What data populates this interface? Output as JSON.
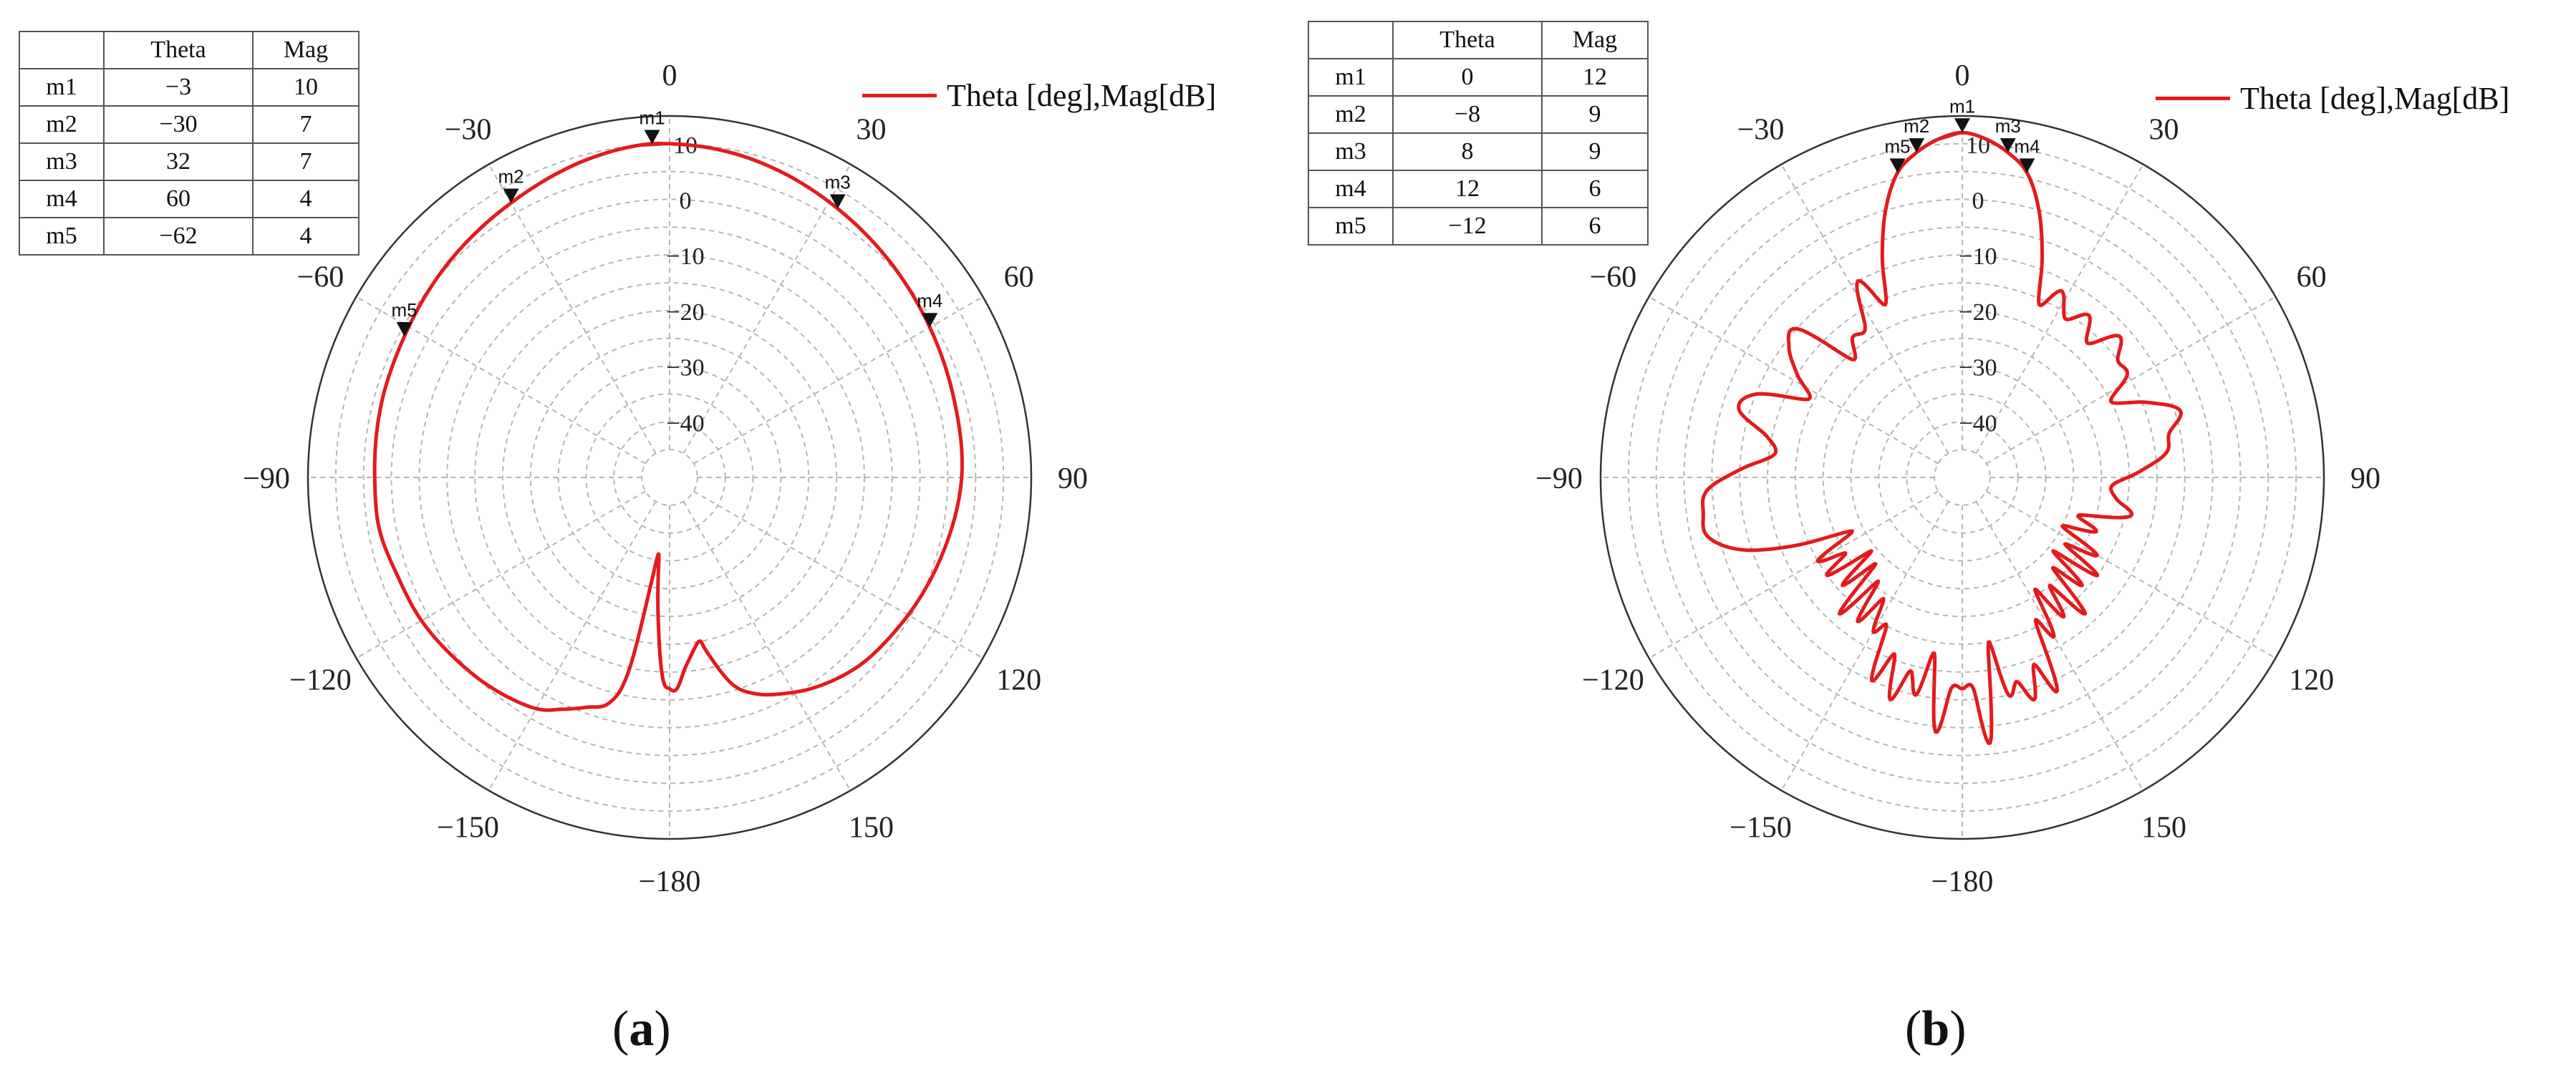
{
  "chart_data": [
    {
      "id": "a",
      "type": "polar-line",
      "caption_letter": "a",
      "legend": "Theta [deg],Mag[dB]",
      "series_color": "#e41a1c",
      "radial_range": [
        -50,
        15
      ],
      "radial_ticks": [
        "10",
        "0",
        "−10",
        "−20",
        "−30",
        "−40"
      ],
      "radial_tick_values": [
        10,
        0,
        -10,
        -20,
        -30,
        -40
      ],
      "angle_labels": [
        {
          "angle": 0,
          "label": "0"
        },
        {
          "angle": 30,
          "label": "30"
        },
        {
          "angle": 60,
          "label": "60"
        },
        {
          "angle": 90,
          "label": "90"
        },
        {
          "angle": 120,
          "label": "120"
        },
        {
          "angle": 150,
          "label": "150"
        },
        {
          "angle": 180,
          "label": "−180"
        },
        {
          "angle": -150,
          "label": "−150"
        },
        {
          "angle": -120,
          "label": "−120"
        },
        {
          "angle": -90,
          "label": "−90"
        },
        {
          "angle": -60,
          "label": "−60"
        },
        {
          "angle": -30,
          "label": "−30"
        }
      ],
      "marker_table": {
        "headers": [
          "",
          "Theta",
          "Mag"
        ],
        "rows": [
          [
            "m1",
            "−3",
            "10"
          ],
          [
            "m2",
            "−30",
            "7"
          ],
          [
            "m3",
            "32",
            "7"
          ],
          [
            "m4",
            "60",
            "4"
          ],
          [
            "m5",
            "−62",
            "4"
          ]
        ]
      },
      "markers": [
        {
          "name": "m1",
          "theta": -3,
          "mag": 10
        },
        {
          "name": "m2",
          "theta": -30,
          "mag": 7
        },
        {
          "name": "m3",
          "theta": 32,
          "mag": 7
        },
        {
          "name": "m4",
          "theta": 60,
          "mag": 4
        },
        {
          "name": "m5",
          "theta": -62,
          "mag": 4
        }
      ],
      "pattern": {
        "theta": [
          0,
          10,
          20,
          32,
          45,
          60,
          75,
          90,
          105,
          115,
          125,
          135,
          145,
          152,
          158,
          163,
          168,
          170,
          175,
          178,
          180,
          -178,
          -175,
          -172,
          -170,
          -168,
          -165,
          -160,
          -155,
          -150,
          -140,
          -130,
          -120,
          -110,
          -100,
          -90,
          -75,
          -62,
          -45,
          -30,
          -15,
          -5
        ],
        "mag": [
          10,
          9.5,
          8.5,
          7,
          5.5,
          4,
          3,
          2.5,
          1,
          0,
          -1,
          -2,
          -4,
          -6,
          -8,
          -11,
          -18,
          -20,
          -16,
          -12,
          -12,
          -14,
          -26,
          -36,
          -30,
          -14,
          -8,
          -6,
          -4,
          -2,
          -0.5,
          0.5,
          1.5,
          2,
          3,
          3,
          3.5,
          4,
          5.5,
          7,
          9,
          10
        ]
      }
    },
    {
      "id": "b",
      "type": "polar-line",
      "caption_letter": "b",
      "legend": "Theta [deg],Mag[dB]",
      "series_color": "#e41a1c",
      "radial_range": [
        -50,
        15
      ],
      "radial_ticks": [
        "10",
        "0",
        "−10",
        "−20",
        "−30",
        "−40"
      ],
      "radial_tick_values": [
        10,
        0,
        -10,
        -20,
        -30,
        -40
      ],
      "angle_labels": [
        {
          "angle": 0,
          "label": "0"
        },
        {
          "angle": 30,
          "label": "30"
        },
        {
          "angle": 60,
          "label": "60"
        },
        {
          "angle": 90,
          "label": "90"
        },
        {
          "angle": 120,
          "label": "120"
        },
        {
          "angle": 150,
          "label": "150"
        },
        {
          "angle": 180,
          "label": "−180"
        },
        {
          "angle": -150,
          "label": "−150"
        },
        {
          "angle": -120,
          "label": "−120"
        },
        {
          "angle": -90,
          "label": "−90"
        },
        {
          "angle": -60,
          "label": "−60"
        },
        {
          "angle": -30,
          "label": "−30"
        }
      ],
      "marker_table": {
        "headers": [
          "",
          "Theta",
          "Mag"
        ],
        "rows": [
          [
            "m1",
            "0",
            "12"
          ],
          [
            "m2",
            "−8",
            "9"
          ],
          [
            "m3",
            "8",
            "9"
          ],
          [
            "m4",
            "12",
            "6"
          ],
          [
            "m5",
            "−12",
            "6"
          ]
        ]
      },
      "markers": [
        {
          "name": "m1",
          "theta": 0,
          "mag": 12
        },
        {
          "name": "m2",
          "theta": -8,
          "mag": 9
        },
        {
          "name": "m3",
          "theta": 8,
          "mag": 9
        },
        {
          "name": "m4",
          "theta": 12,
          "mag": 6
        },
        {
          "name": "m5",
          "theta": -12,
          "mag": 6
        }
      ],
      "pattern": {
        "theta": [
          0,
          4,
          8,
          12,
          16,
          20,
          24,
          28,
          33,
          38,
          43,
          48,
          53,
          58,
          63,
          68,
          73,
          78,
          83,
          88,
          93,
          98,
          103,
          108,
          112,
          116,
          120,
          123,
          126,
          129,
          132,
          135,
          138,
          141,
          144,
          147,
          150,
          153,
          156,
          159,
          162,
          165,
          168,
          171,
          174,
          177,
          180,
          -177,
          -174,
          -171,
          -168,
          -165,
          -162,
          -159,
          -156,
          -153,
          -150,
          -147,
          -144,
          -141,
          -138,
          -135,
          -132,
          -129,
          -126,
          -123,
          -120,
          -116,
          -112,
          -108,
          -103,
          -98,
          -93,
          -88,
          -83,
          -78,
          -73,
          -68,
          -63,
          -58,
          -53,
          -48,
          -43,
          -38,
          -33,
          -28,
          -24,
          -20,
          -16,
          -12,
          -8,
          -4
        ],
        "mag": [
          12,
          11,
          9,
          6,
          0,
          -8,
          -16,
          -12,
          -16,
          -13,
          -17,
          -12,
          -15,
          -15,
          -20,
          -14,
          -9,
          -12,
          -13,
          -18,
          -23,
          -22,
          -19,
          -28,
          -24,
          -30,
          -22,
          -28,
          -20,
          -29,
          -21,
          -27,
          -17,
          -25,
          -19,
          -26,
          -17,
          -21,
          -8,
          -14,
          -8,
          -12,
          -10,
          -20,
          -2,
          -12,
          -12,
          -12,
          -4,
          -18,
          -10,
          -14,
          -8,
          -16,
          -10,
          -20,
          -18,
          -24,
          -18,
          -26,
          -17,
          -28,
          -21,
          -29,
          -20,
          -25,
          -20,
          -28,
          -17,
          -8,
          -3,
          -3,
          -4,
          -10,
          -16,
          -14,
          -8,
          -10,
          -19,
          -15,
          -11,
          -10,
          -21,
          -18,
          -18,
          -10,
          -16,
          -8,
          0,
          6,
          9,
          11
        ]
      }
    }
  ]
}
